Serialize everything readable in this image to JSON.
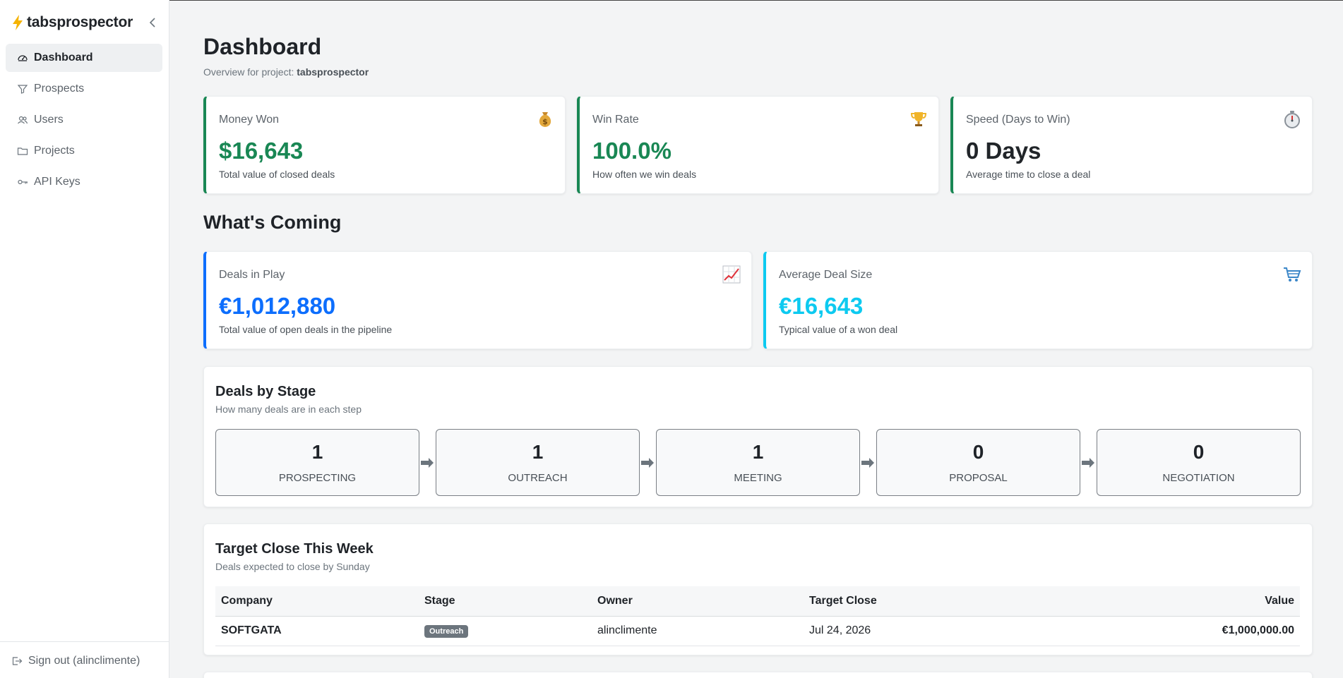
{
  "sidebar": {
    "brand": "tabsprospector",
    "items": [
      {
        "label": "Dashboard",
        "icon": "gauge-icon"
      },
      {
        "label": "Prospects",
        "icon": "filter-icon"
      },
      {
        "label": "Users",
        "icon": "users-icon"
      },
      {
        "label": "Projects",
        "icon": "folder-icon"
      },
      {
        "label": "API Keys",
        "icon": "key-icon"
      }
    ],
    "signout": "Sign out (alinclimente)"
  },
  "header": {
    "title": "Dashboard",
    "subtitle_prefix": "Overview for project: ",
    "project": "tabsprospector"
  },
  "stats": [
    {
      "label": "Money Won",
      "value": "$16,643",
      "desc": "Total value of closed deals",
      "icon": "money-bag-icon",
      "color": "#198754"
    },
    {
      "label": "Win Rate",
      "value": "100.0%",
      "desc": "How often we win deals",
      "icon": "trophy-icon",
      "color": "#198754"
    },
    {
      "label": "Speed (Days to Win)",
      "value": "0 Days",
      "desc": "Average time to close a deal",
      "icon": "stopwatch-icon",
      "color": "#212529"
    }
  ],
  "coming": {
    "title": "What's Coming",
    "cards": [
      {
        "label": "Deals in Play",
        "value": "€1,012,880",
        "desc": "Total value of open deals in the pipeline",
        "icon": "chart-up-icon",
        "color": "#0d6efd"
      },
      {
        "label": "Average Deal Size",
        "value": "€16,643",
        "desc": "Typical value of a won deal",
        "icon": "cart-icon",
        "color": "#0dcaf0"
      }
    ]
  },
  "stages": {
    "title": "Deals by Stage",
    "subtitle": "How many deals are in each step",
    "items": [
      {
        "count": "1",
        "name": "PROSPECTING"
      },
      {
        "count": "1",
        "name": "OUTREACH"
      },
      {
        "count": "1",
        "name": "MEETING"
      },
      {
        "count": "0",
        "name": "PROPOSAL"
      },
      {
        "count": "0",
        "name": "NEGOTIATION"
      }
    ]
  },
  "target": {
    "title": "Target Close This Week",
    "subtitle": "Deals expected to close by Sunday",
    "columns": [
      "Company",
      "Stage",
      "Owner",
      "Target Close",
      "Value"
    ],
    "rows": [
      {
        "company": "SOFTGATA",
        "stage": "Outreach",
        "owner": "alinclimente",
        "target_close": "Jul 24, 2026",
        "value": "€1,000,000.00"
      }
    ]
  }
}
